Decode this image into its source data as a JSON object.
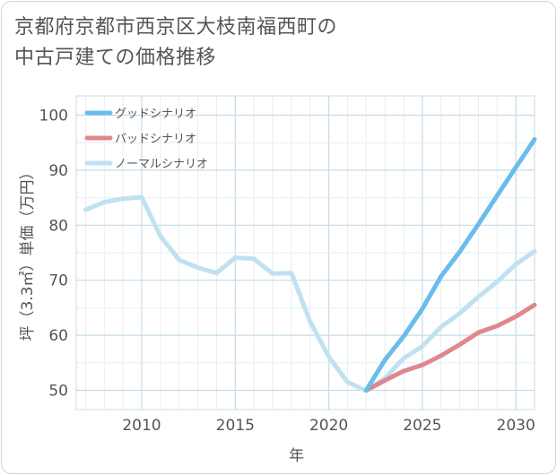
{
  "title_line1": "京都府京都市西京区大枝南福西町の",
  "title_line2": "中古戸建ての価格推移",
  "chart_data": {
    "type": "line",
    "xlabel": "年",
    "ylabel": "坪（3.3㎡）単価（万円）",
    "xlim": [
      2006.5,
      2031
    ],
    "ylim": [
      46.5,
      103.5
    ],
    "x_ticks": [
      2010,
      2015,
      2020,
      2025,
      2030
    ],
    "y_ticks": [
      50,
      60,
      70,
      80,
      90,
      100
    ],
    "grid": true,
    "legend_position": "top-left",
    "series": [
      {
        "name": "グッドシナリオ",
        "color": "#6bbcec",
        "x": [
          2022,
          2023,
          2024,
          2025,
          2026,
          2027,
          2028,
          2029,
          2030,
          2031
        ],
        "values": [
          50.0,
          55.5,
          59.8,
          64.8,
          70.7,
          75.2,
          80.2,
          85.4,
          90.5,
          95.6
        ]
      },
      {
        "name": "バッドシナリオ",
        "color": "#e0878d",
        "x": [
          2022,
          2023,
          2024,
          2025,
          2026,
          2027,
          2028,
          2029,
          2030,
          2031
        ],
        "values": [
          50.0,
          51.8,
          53.5,
          54.6,
          56.3,
          58.3,
          60.5,
          61.7,
          63.4,
          65.5
        ]
      },
      {
        "name": "ノーマルシナリオ",
        "color": "#bfe1f0",
        "x": [
          2007,
          2008,
          2009,
          2010,
          2011,
          2012,
          2013,
          2014,
          2015,
          2016,
          2017,
          2018,
          2019,
          2020,
          2021,
          2022,
          2023,
          2024,
          2025,
          2026,
          2027,
          2028,
          2029,
          2030,
          2031
        ],
        "values": [
          82.8,
          84.2,
          84.8,
          85.1,
          78.0,
          73.7,
          72.3,
          71.3,
          74.1,
          73.9,
          71.2,
          71.3,
          62.5,
          56.1,
          51.5,
          49.9,
          52.2,
          55.8,
          58.0,
          61.5,
          64.0,
          67.0,
          69.7,
          72.9,
          75.3
        ]
      }
    ]
  }
}
